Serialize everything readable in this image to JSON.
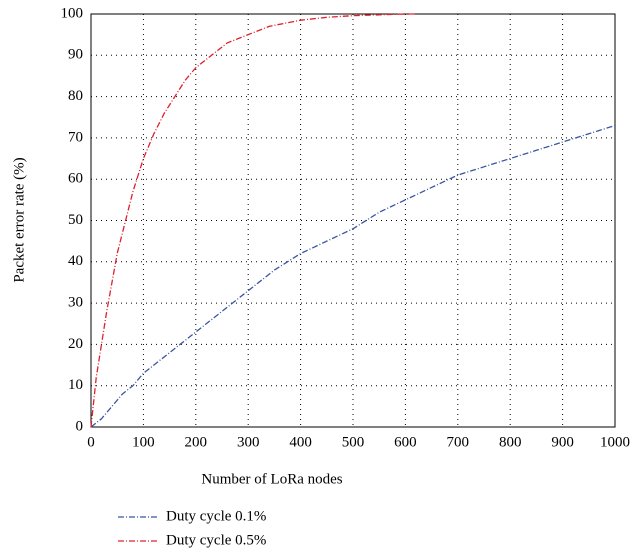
{
  "chart_data": {
    "type": "line",
    "x_label": "Number of LoRa nodes",
    "y_label": "Packet error rate (%)",
    "xlim": [
      0,
      1000
    ],
    "ylim": [
      0,
      100
    ],
    "xticks": [
      0,
      100,
      200,
      300,
      400,
      500,
      600,
      700,
      800,
      900,
      1000
    ],
    "yticks": [
      0,
      10,
      20,
      30,
      40,
      50,
      60,
      70,
      80,
      90,
      100
    ],
    "grid": true,
    "legend": "bottom-left",
    "series": [
      {
        "name": "Duty cycle 0.1%",
        "color": "#3a55a4",
        "x": [
          0,
          20,
          40,
          60,
          80,
          100,
          150,
          200,
          250,
          300,
          350,
          400,
          450,
          500,
          550,
          600,
          650,
          700,
          750,
          800,
          850,
          900,
          950,
          1000
        ],
        "values": [
          0,
          2,
          5,
          8,
          10,
          13,
          18,
          23,
          28,
          33,
          38,
          42,
          45,
          48,
          52,
          55,
          58,
          61,
          63,
          65,
          67,
          69,
          71,
          73
        ]
      },
      {
        "name": "Duty cycle 0.5%",
        "color": "#e0202c",
        "x": [
          0,
          10,
          20,
          30,
          40,
          50,
          60,
          70,
          80,
          90,
          100,
          120,
          140,
          160,
          180,
          200,
          220,
          240,
          260,
          280,
          300,
          320,
          340,
          360,
          380,
          400,
          450,
          500,
          550,
          600,
          620
        ],
        "values": [
          0,
          12,
          20,
          28,
          35,
          42,
          47,
          52,
          57,
          61,
          65,
          71,
          76,
          80,
          84,
          87,
          89,
          91,
          93,
          94,
          95,
          96,
          97,
          97.5,
          98,
          98.5,
          99.2,
          99.6,
          99.8,
          100,
          100
        ]
      }
    ]
  }
}
